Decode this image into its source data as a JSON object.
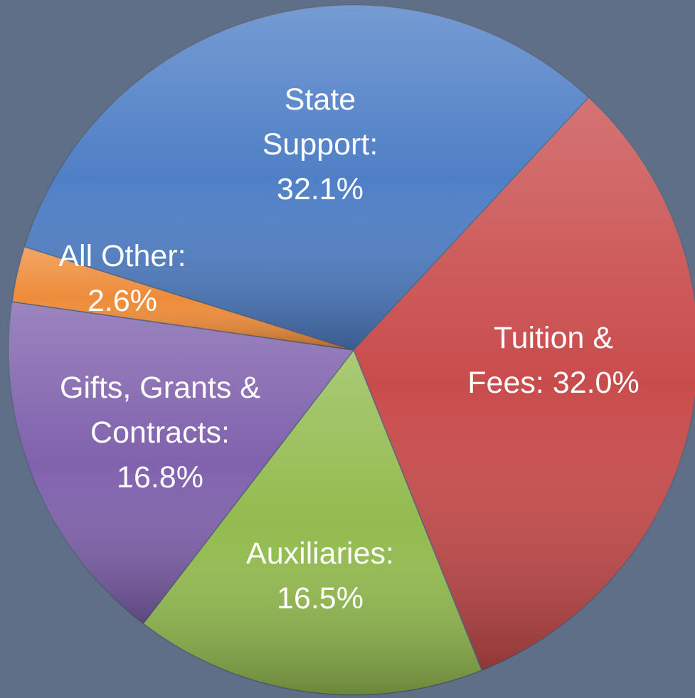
{
  "chart_data": {
    "type": "pie",
    "categories": [
      "State Support:",
      "Tuition & Fees:",
      "Auxiliaries:",
      "Gifts, Grants & Contracts:",
      "All Other:"
    ],
    "values": [
      32.1,
      32.0,
      16.5,
      16.8,
      2.6
    ],
    "value_labels": [
      "32.1%",
      "32.0%",
      "16.5%",
      "16.8%",
      "2.6%"
    ],
    "colors": [
      "#4f7fc6",
      "#c94c4c",
      "#93bb4f",
      "#8062ad",
      "#ee8c3a"
    ]
  }
}
